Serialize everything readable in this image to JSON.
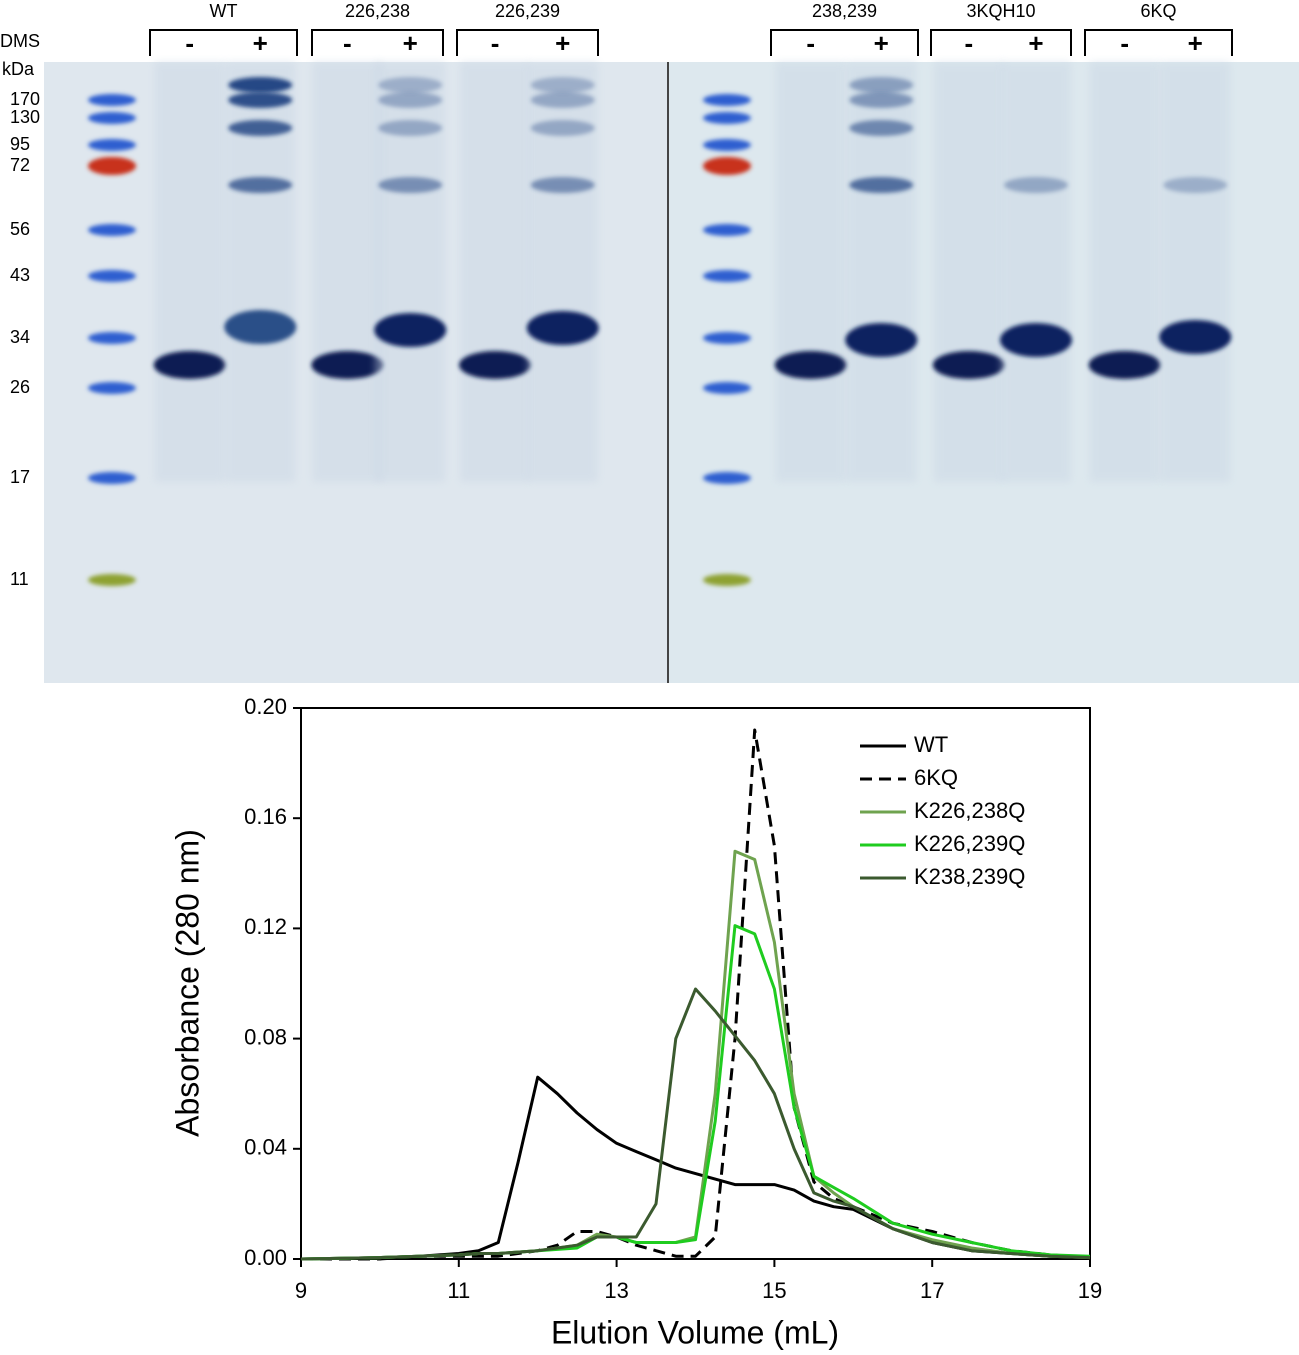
{
  "gel": {
    "dms_label": "DMS",
    "unit_label": "kDa",
    "markers": [
      170,
      130,
      95,
      72,
      56,
      43,
      34,
      26,
      17,
      11
    ],
    "groups": [
      {
        "name": "WT",
        "lanes": [
          "-",
          "+"
        ]
      },
      {
        "name": "226,238",
        "lanes": [
          "-",
          "+"
        ]
      },
      {
        "name": "226,239",
        "lanes": [
          "-",
          "+"
        ]
      },
      {
        "name": "238,239",
        "lanes": [
          "-",
          "+"
        ]
      },
      {
        "name": "3KQH10",
        "lanes": [
          "-",
          "+"
        ]
      },
      {
        "name": "6KQ",
        "lanes": [
          "-",
          "+"
        ]
      }
    ]
  },
  "chart_data": {
    "type": "line",
    "x_label": "Elution Volume (mL)",
    "y_label": "Absorbance (280 nm)",
    "x": [
      9,
      10,
      10.5,
      11,
      11.25,
      11.5,
      11.75,
      12,
      12.25,
      12.5,
      12.75,
      13,
      13.25,
      13.5,
      13.75,
      14,
      14.25,
      14.5,
      14.75,
      15,
      15.25,
      15.5,
      15.75,
      16,
      16.5,
      17,
      17.5,
      18,
      18.5,
      19
    ],
    "series": [
      {
        "name": "WT",
        "color": "#000000",
        "linestyle": "solid",
        "values": [
          0,
          0.0005,
          0.001,
          0.002,
          0.003,
          0.006,
          0.035,
          0.066,
          0.06,
          0.053,
          0.047,
          0.042,
          0.039,
          0.036,
          0.033,
          0.031,
          0.029,
          0.027,
          0.027,
          0.027,
          0.025,
          0.021,
          0.019,
          0.018,
          0.011,
          0.006,
          0.003,
          0.002,
          0.001,
          0.0005
        ]
      },
      {
        "name": "6KQ",
        "color": "#000000",
        "linestyle": "dashed",
        "values": [
          0,
          0,
          0.001,
          0.001,
          0.001,
          0.001,
          0.002,
          0.003,
          0.005,
          0.01,
          0.01,
          0.008,
          0.005,
          0.003,
          0.001,
          0.001,
          0.008,
          0.08,
          0.192,
          0.15,
          0.055,
          0.028,
          0.022,
          0.019,
          0.013,
          0.01,
          0.006,
          0.003,
          0.0015,
          0.0005
        ]
      },
      {
        "name": "K226,238Q",
        "color": "#6fa34f",
        "linestyle": "solid",
        "values": [
          0,
          0.0005,
          0.001,
          0.0015,
          0.002,
          0.002,
          0.0025,
          0.003,
          0.004,
          0.005,
          0.009,
          0.008,
          0.006,
          0.006,
          0.006,
          0.008,
          0.06,
          0.148,
          0.145,
          0.115,
          0.06,
          0.03,
          0.024,
          0.019,
          0.011,
          0.007,
          0.004,
          0.002,
          0.001,
          0.0005
        ]
      },
      {
        "name": "K226,239Q",
        "color": "#1fcc1f",
        "linestyle": "solid",
        "values": [
          0,
          0.0005,
          0.001,
          0.0015,
          0.002,
          0.002,
          0.0025,
          0.003,
          0.0035,
          0.004,
          0.008,
          0.008,
          0.006,
          0.006,
          0.006,
          0.007,
          0.05,
          0.121,
          0.118,
          0.098,
          0.055,
          0.03,
          0.026,
          0.022,
          0.013,
          0.009,
          0.006,
          0.003,
          0.0015,
          0.001
        ]
      },
      {
        "name": "K238,239Q",
        "color": "#3b5a2f",
        "linestyle": "solid",
        "values": [
          0,
          0.0005,
          0.001,
          0.0015,
          0.002,
          0.002,
          0.0025,
          0.003,
          0.004,
          0.005,
          0.008,
          0.008,
          0.008,
          0.02,
          0.08,
          0.098,
          0.09,
          0.081,
          0.072,
          0.06,
          0.04,
          0.024,
          0.021,
          0.019,
          0.011,
          0.006,
          0.003,
          0.002,
          0.001,
          0.0005
        ]
      }
    ],
    "xlim": [
      9,
      19
    ],
    "xticks": [
      9,
      11,
      13,
      15,
      17,
      19
    ],
    "ylim": [
      0,
      0.2
    ],
    "yticks": [
      {
        "value": 0,
        "label": "0.00"
      },
      0.04,
      0.08,
      0.12,
      0.16,
      {
        "value": 0.2,
        "label": "0.20"
      }
    ],
    "legend": "upper right"
  }
}
